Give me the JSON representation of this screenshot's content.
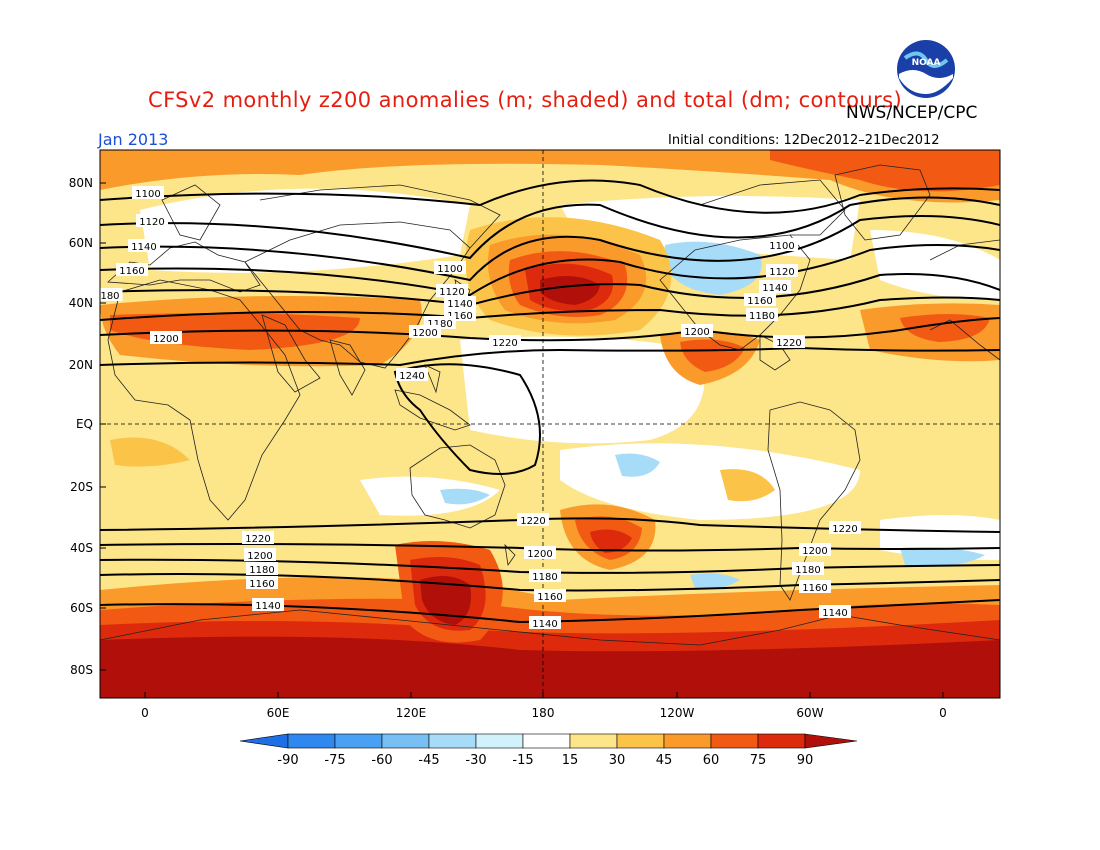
{
  "header": {
    "title": "CFSv2 monthly z200 anomalies (m; shaded) and total (dm; contours)",
    "org": "NWS/NCEP/CPC",
    "month": "Jan 2013",
    "initial_conditions": "Initial conditions: 12Dec2012–21Dec2012",
    "logo_text": "NOAA"
  },
  "map": {
    "lat_labels": [
      "80N",
      "60N",
      "40N",
      "20N",
      "EQ",
      "20S",
      "40S",
      "60S",
      "80S"
    ],
    "lon_labels": [
      "0",
      "60E",
      "120E",
      "180",
      "120W",
      "60W",
      "0"
    ],
    "contour_labels": [
      "1100",
      "1120",
      "1140",
      "1160",
      "1180",
      "1200",
      "1220",
      "1240"
    ],
    "contour_units": "dm"
  },
  "colorbar": {
    "ticks": [
      "-90",
      "-75",
      "-60",
      "-45",
      "-30",
      "-15",
      "15",
      "30",
      "45",
      "60",
      "75",
      "90"
    ],
    "colors": [
      "#1e6ee6",
      "#2f87f0",
      "#4aa0f2",
      "#78c0f4",
      "#a6dcf8",
      "#d2f2fb",
      "#ffffff",
      "#fde58a",
      "#fbc347",
      "#fa9a2a",
      "#f25a14",
      "#dd2a0c",
      "#b1100a"
    ]
  },
  "field_colors": {
    "pos15": "#fde58a",
    "pos30": "#fbc347",
    "pos45": "#fa9a2a",
    "pos60": "#f25a14",
    "pos75": "#dd2a0c",
    "pos90": "#b1100a",
    "neg15": "#d2f2fb",
    "neg30": "#a6dcf8"
  }
}
